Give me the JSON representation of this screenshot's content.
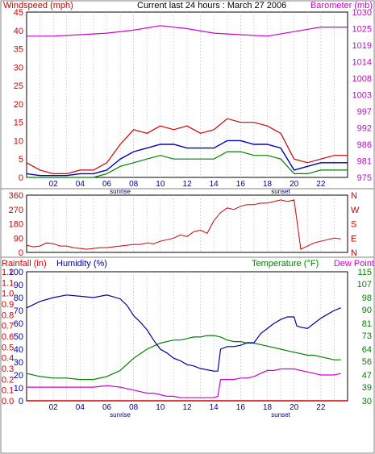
{
  "header": {
    "left_label": "Windspeed (mph)",
    "title": "Current last 24 hours : March 27 2006",
    "right_label": "Barometer (mb)"
  },
  "colors": {
    "windspeed": "#d00000",
    "gust": "#d00000",
    "average": "#0000c0",
    "wind_green": "#008000",
    "barometer": "#d000d0",
    "direction": "#d00000",
    "humidity": "#0000a0",
    "temperature": "#008000",
    "dewpoint": "#d000d0",
    "rain": "#d00000",
    "grid": "#c0c0c0",
    "frame": "#000000"
  },
  "x_axis": {
    "ticks": [
      "02",
      "04",
      "06",
      "08",
      "10",
      "12",
      "14",
      "16",
      "18",
      "20",
      "22"
    ],
    "sunrise_label": "sunrise",
    "sunset_label": "sunset",
    "sunrise_hour": 7,
    "sunset_hour": 19
  },
  "chart_data": [
    {
      "type": "line",
      "name_key": "wind",
      "left_axis_label": "Windspeed (mph)",
      "right_axis_label": "Barometer (mb)",
      "left_ticks": [
        0,
        5,
        10,
        15,
        20,
        25,
        30,
        35,
        40,
        45
      ],
      "right_ticks": [
        975,
        981,
        986,
        992,
        997,
        1003,
        1008,
        1014,
        1019,
        1025,
        1030
      ],
      "ylim_left": [
        0,
        45
      ],
      "ylim_right": [
        975,
        1030
      ],
      "barometer": {
        "x": [
          0,
          2,
          4,
          6,
          8,
          10,
          12,
          14,
          16,
          18,
          20,
          22,
          24
        ],
        "y": [
          1022,
          1022,
          1022.5,
          1023,
          1024,
          1025.5,
          1024.5,
          1023,
          1022.5,
          1022,
          1023.5,
          1025,
          1025
        ]
      },
      "gust": {
        "x": [
          0,
          1,
          2,
          3,
          4,
          5,
          6,
          7,
          8,
          9,
          10,
          11,
          12,
          13,
          14,
          15,
          16,
          17,
          18,
          19,
          20,
          21,
          22,
          23,
          24
        ],
        "y": [
          4,
          2,
          1,
          1,
          2,
          2,
          4,
          9,
          13,
          12,
          14,
          13,
          14,
          12,
          13,
          16,
          15,
          15,
          14,
          12,
          5,
          4,
          5,
          6,
          6
        ]
      },
      "average": {
        "x": [
          0,
          1,
          2,
          3,
          4,
          5,
          6,
          7,
          8,
          9,
          10,
          11,
          12,
          13,
          14,
          15,
          16,
          17,
          18,
          19,
          20,
          21,
          22,
          23,
          24
        ],
        "y": [
          1,
          0.5,
          0.5,
          0.5,
          1,
          1,
          2,
          5,
          7,
          8,
          9,
          9,
          8,
          8,
          8,
          10,
          10,
          9,
          9,
          8,
          2,
          3,
          4,
          4,
          4
        ]
      },
      "lull": {
        "x": [
          0,
          1,
          2,
          3,
          4,
          5,
          6,
          7,
          8,
          9,
          10,
          11,
          12,
          13,
          14,
          15,
          16,
          17,
          18,
          19,
          20,
          21,
          22,
          23,
          24
        ],
        "y": [
          0,
          0,
          0,
          0,
          0,
          0,
          1,
          3,
          4,
          5,
          6,
          5,
          5,
          5,
          5,
          7,
          7,
          6,
          6,
          5,
          1,
          1,
          2,
          2,
          2
        ]
      }
    },
    {
      "type": "line",
      "name_key": "direction",
      "left_ticks": [
        0,
        90,
        180,
        270,
        360
      ],
      "right_ticks": [
        "N",
        "E",
        "S",
        "W",
        "N"
      ],
      "ylim": [
        0,
        360
      ],
      "x": [
        0,
        0.5,
        1,
        1.5,
        2,
        2.5,
        3,
        3.5,
        4,
        4.5,
        5,
        5.5,
        6,
        6.5,
        7,
        7.5,
        8,
        8.5,
        9,
        9.5,
        10,
        10.5,
        11,
        11.5,
        12,
        12.5,
        13,
        13.5,
        14,
        14.5,
        15,
        15.5,
        16,
        16.5,
        17,
        17.5,
        18,
        18.5,
        19,
        19.5,
        20,
        20.5,
        21,
        21.5,
        22,
        22.5,
        23,
        23.5
      ],
      "y": [
        45,
        35,
        40,
        60,
        55,
        40,
        40,
        30,
        25,
        20,
        25,
        30,
        30,
        35,
        40,
        45,
        50,
        50,
        60,
        55,
        70,
        80,
        90,
        110,
        100,
        130,
        140,
        120,
        200,
        250,
        280,
        270,
        290,
        300,
        300,
        310,
        310,
        320,
        330,
        320,
        330,
        20,
        40,
        60,
        70,
        80,
        90,
        85
      ]
    },
    {
      "type": "line",
      "name_key": "humidity_temp",
      "left_label_rain": "Rainfall (in)",
      "left_label_humidity": "Humidity (%)",
      "right_label": "Temperature (°F)",
      "right_label_2": "Dew Point",
      "rain_ticks": [
        "0.0",
        "0.1",
        "0.2",
        "0.3",
        "0.4",
        "0.5",
        "0.6",
        "0.7",
        "0.8",
        "0.9",
        "1.0",
        "1.1",
        "1.2"
      ],
      "humidity_ticks": [
        0,
        10,
        20,
        30,
        40,
        50,
        60,
        70,
        80,
        90,
        100
      ],
      "temp_ticks": [
        30,
        39,
        47,
        56,
        64,
        73,
        81,
        90,
        98,
        107,
        115
      ],
      "ylim_humidity": [
        0,
        100
      ],
      "ylim_temp": [
        30,
        115
      ],
      "humidity": {
        "x": [
          0,
          1,
          2,
          3,
          4,
          5,
          6,
          7,
          7.5,
          8,
          8.5,
          9,
          9.5,
          10,
          10.5,
          11,
          11.5,
          12,
          12.5,
          13,
          13.5,
          14,
          14.3,
          14.5,
          15,
          15.5,
          16,
          16.5,
          17,
          17.5,
          18,
          18.5,
          19,
          19.5,
          20,
          20.2,
          20.5,
          21,
          21.5,
          22,
          22.5,
          23,
          23.5
        ],
        "y": [
          72,
          77,
          80,
          82,
          81,
          80,
          82,
          79,
          74,
          66,
          61,
          55,
          47,
          40,
          37,
          33,
          31,
          28,
          27,
          25,
          24,
          23,
          23,
          40,
          42,
          42,
          43,
          45,
          45,
          52,
          56,
          60,
          63,
          65,
          65,
          58,
          57,
          56,
          60,
          64,
          67,
          70,
          72
        ]
      },
      "temperature": {
        "x": [
          0,
          1,
          2,
          3,
          4,
          5,
          6,
          7,
          7.5,
          8,
          8.5,
          9,
          9.5,
          10,
          10.5,
          11,
          11.5,
          12,
          12.5,
          13,
          13.5,
          14,
          14.5,
          15,
          15.5,
          16,
          16.5,
          17,
          17.5,
          18,
          18.5,
          19,
          19.5,
          20,
          20.5,
          21,
          21.5,
          22,
          22.5,
          23,
          23.5
        ],
        "y": [
          48,
          46,
          45,
          45,
          44,
          44,
          46,
          50,
          54,
          58,
          61,
          64,
          66,
          68,
          69,
          70,
          70,
          71,
          72,
          72,
          73,
          73,
          72,
          70,
          69,
          69,
          68,
          68,
          67,
          66,
          65,
          64,
          63,
          62,
          61,
          60,
          60,
          59,
          58,
          57,
          57
        ]
      },
      "dewpoint": {
        "x": [
          0,
          1,
          2,
          3,
          4,
          5,
          6,
          7,
          7.5,
          8,
          8.5,
          9,
          9.5,
          10,
          10.5,
          11,
          11.5,
          12,
          12.5,
          13,
          13.5,
          14,
          14.3,
          14.5,
          15,
          15.5,
          16,
          16.5,
          17,
          17.5,
          18,
          18.5,
          19,
          19.5,
          20,
          20.5,
          21,
          21.5,
          22,
          22.5,
          23,
          23.5
        ],
        "y": [
          39,
          39,
          39,
          39,
          39,
          39,
          40,
          39,
          38,
          37,
          36,
          35,
          35,
          34,
          33,
          33,
          32,
          32,
          32,
          32,
          32,
          32,
          33,
          44,
          44,
          44,
          45,
          45,
          46,
          48,
          50,
          50,
          51,
          51,
          51,
          50,
          49,
          48,
          47,
          47,
          47,
          48
        ]
      },
      "rainfall": {
        "x": [
          0,
          24
        ],
        "y": [
          0,
          0
        ]
      }
    }
  ]
}
